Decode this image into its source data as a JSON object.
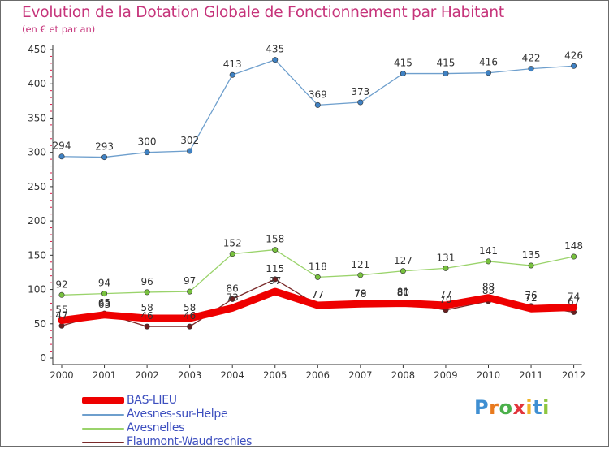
{
  "title": "Evolution de la Dotation Globale de Fonctionnement par Habitant",
  "subtitle": "(en € et par an)",
  "logo": {
    "text": "Proxiti",
    "letter_colors": [
      "#3f8fd2",
      "#e87a1e",
      "#4bb04b",
      "#e2343b",
      "#f0b428",
      "#3f8fd2",
      "#8dc63f"
    ]
  },
  "colors": {
    "title": "#c6337a",
    "axis": "#333333",
    "tick_marks": "#e01b4b",
    "legend_text": "#3d4fbf",
    "value_labels": "#333333"
  },
  "chart_data": {
    "type": "line",
    "title": "Evolution de la Dotation Globale de Fonctionnement par Habitant",
    "subtitle": "(en € et par an)",
    "xlabel": "",
    "ylabel": "",
    "x": [
      "2000",
      "2001",
      "2002",
      "2003",
      "2004",
      "2005",
      "2006",
      "2007",
      "2008",
      "2009",
      "2010",
      "2011",
      "2012"
    ],
    "ylim": [
      0,
      450
    ],
    "yticks": [
      0,
      50,
      100,
      150,
      200,
      250,
      300,
      350,
      400,
      450
    ],
    "grid": false,
    "legend_position": "bottom-left",
    "series": [
      {
        "name": "BAS-LIEU",
        "color": "#ee0000",
        "marker": "#ee0000",
        "style": "thick",
        "values": [
          55,
          63,
          58,
          58,
          73,
          97,
          77,
          79,
          80,
          77,
          88,
          72,
          74
        ]
      },
      {
        "name": "Avesnes-sur-Helpe",
        "color": "#6e9fcd",
        "marker": "#3f82c4",
        "style": "thin",
        "values": [
          294,
          293,
          300,
          302,
          413,
          435,
          369,
          373,
          415,
          415,
          416,
          422,
          426
        ]
      },
      {
        "name": "Avesnelles",
        "color": "#9ad36b",
        "marker": "#78c23e",
        "style": "thin",
        "values": [
          92,
          94,
          96,
          97,
          152,
          158,
          118,
          121,
          127,
          131,
          141,
          135,
          148
        ]
      },
      {
        "name": "Flaumont-Waudrechies",
        "color": "#7a2a2a",
        "marker": "#6b1f1f",
        "style": "thin",
        "values": [
          47,
          65,
          46,
          46,
          86,
          115,
          77,
          78,
          81,
          70,
          83,
          76,
          67
        ]
      }
    ]
  }
}
